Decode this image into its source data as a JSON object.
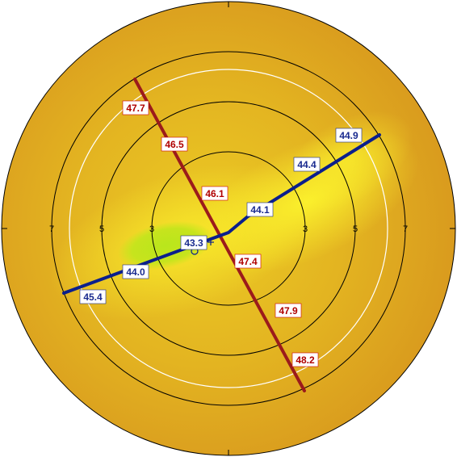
{
  "map": {
    "colors": {
      "outer": "#d99b1e",
      "mid": "#e2b020",
      "yellow": "#f0d023",
      "bright": "#f8e82a",
      "green": "#b9e61c",
      "steep_axis": "#9b1b1b",
      "flat_axis": "#0b1f8c"
    },
    "ring_scale_labels": [
      "7",
      "5",
      "3",
      "3",
      "5",
      "7"
    ],
    "steep_meridian_labels": [
      "47.7",
      "46.5",
      "46.1",
      "47.4",
      "47.9",
      "48.2"
    ],
    "flat_meridian_labels": [
      "45.4",
      "44.0",
      "43.3",
      "44.1",
      "44.4",
      "44.9"
    ],
    "markers": [
      "pupil-center-marker",
      "vertex-marker"
    ]
  }
}
